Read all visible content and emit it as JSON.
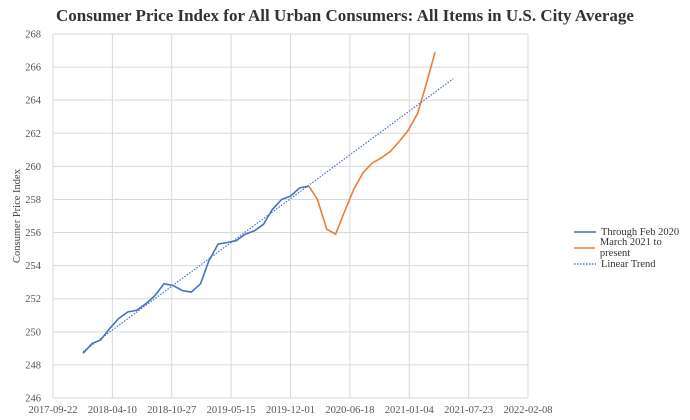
{
  "chart_data": {
    "type": "line",
    "title": "Consumer Price Index for All Urban Consumers: All Items in U.S. City Average",
    "xlabel": "",
    "ylabel": "Consumer Price Index",
    "ylim": [
      246,
      268
    ],
    "yticks": [
      "246",
      "248",
      "250",
      "252",
      "254",
      "256",
      "258",
      "260",
      "262",
      "264",
      "266",
      "268"
    ],
    "xlim": [
      "2017-09-22",
      "2022-02-08"
    ],
    "xticks": [
      "2017-09-22",
      "2018-04-10",
      "2018-10-27",
      "2019-05-15",
      "2019-12-01",
      "2020-06-18",
      "2021-01-04",
      "2021-07-23",
      "2022-02-08"
    ],
    "grid": true,
    "legend_position": "right",
    "series": [
      {
        "name": "Through Feb 2020",
        "color": "#4472C4",
        "style": "solid",
        "x": [
          "2018-01-01",
          "2018-02-01",
          "2018-03-01",
          "2018-04-01",
          "2018-05-01",
          "2018-06-01",
          "2018-07-01",
          "2018-08-01",
          "2018-09-01",
          "2018-10-01",
          "2018-11-01",
          "2018-12-01",
          "2019-01-01",
          "2019-02-01",
          "2019-03-01",
          "2019-04-01",
          "2019-05-01",
          "2019-06-01",
          "2019-07-01",
          "2019-08-01",
          "2019-09-01",
          "2019-10-01",
          "2019-11-01",
          "2019-12-01",
          "2020-01-01",
          "2020-02-01"
        ],
        "y": [
          248.7,
          249.3,
          249.5,
          250.2,
          250.8,
          251.2,
          251.3,
          251.7,
          252.2,
          252.9,
          252.8,
          252.5,
          252.4,
          252.9,
          254.3,
          255.3,
          255.4,
          255.5,
          255.9,
          256.1,
          256.5,
          257.4,
          258.0,
          258.2,
          258.7,
          258.8
        ]
      },
      {
        "name": "March 2021 to present",
        "color": "#ED7D31",
        "style": "solid",
        "x": [
          "2020-02-01",
          "2020-03-01",
          "2020-04-01",
          "2020-05-01",
          "2020-06-01",
          "2020-07-01",
          "2020-08-01",
          "2020-09-01",
          "2020-10-01",
          "2020-11-01",
          "2020-12-01",
          "2021-01-01",
          "2021-02-01",
          "2021-03-01",
          "2021-04-01"
        ],
        "y": [
          258.8,
          258.0,
          256.2,
          255.9,
          257.3,
          258.6,
          259.6,
          260.2,
          260.5,
          260.9,
          261.5,
          262.2,
          263.2,
          264.9,
          266.9
        ]
      },
      {
        "name": "Linear Trend",
        "color": "#4472C4",
        "style": "dotted",
        "x": [
          "2018-01-01",
          "2021-06-01"
        ],
        "y": [
          248.8,
          265.3
        ]
      }
    ]
  }
}
